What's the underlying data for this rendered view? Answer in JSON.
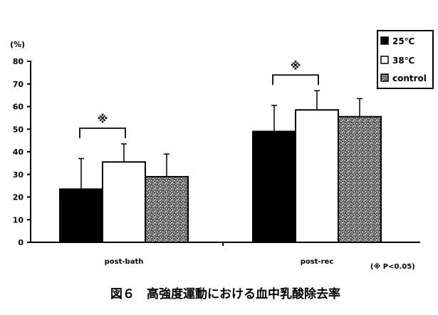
{
  "chart_data": {
    "type": "bar",
    "ylabel": "(%)",
    "ylim": [
      0,
      80
    ],
    "yticks": [
      0,
      10,
      20,
      30,
      40,
      50,
      60,
      70,
      80
    ],
    "categories": [
      "post-bath",
      "post-rec"
    ],
    "series": [
      {
        "name": "25℃",
        "values": [
          23.5,
          49
        ],
        "errors": [
          13.5,
          11.5
        ],
        "fill": "#000000",
        "pattern": "solid"
      },
      {
        "name": "38℃",
        "values": [
          35.5,
          58.5
        ],
        "errors": [
          8,
          8.5
        ],
        "fill": "#ffffff",
        "pattern": "solid"
      },
      {
        "name": "control",
        "values": [
          29,
          55.5
        ],
        "errors": [
          10,
          8
        ],
        "fill": "#888888",
        "pattern": "speckle"
      }
    ],
    "significance": [
      {
        "category": "post-bath",
        "between": [
          "25℃",
          "38℃"
        ],
        "mark": "※"
      },
      {
        "category": "post-rec",
        "between": [
          "25℃",
          "38℃"
        ],
        "mark": "※"
      }
    ],
    "note": "(※ P<0.05)",
    "legend_position": "top-right",
    "grid": false
  },
  "caption": "図６　高強度運動における血中乳酸除去率"
}
